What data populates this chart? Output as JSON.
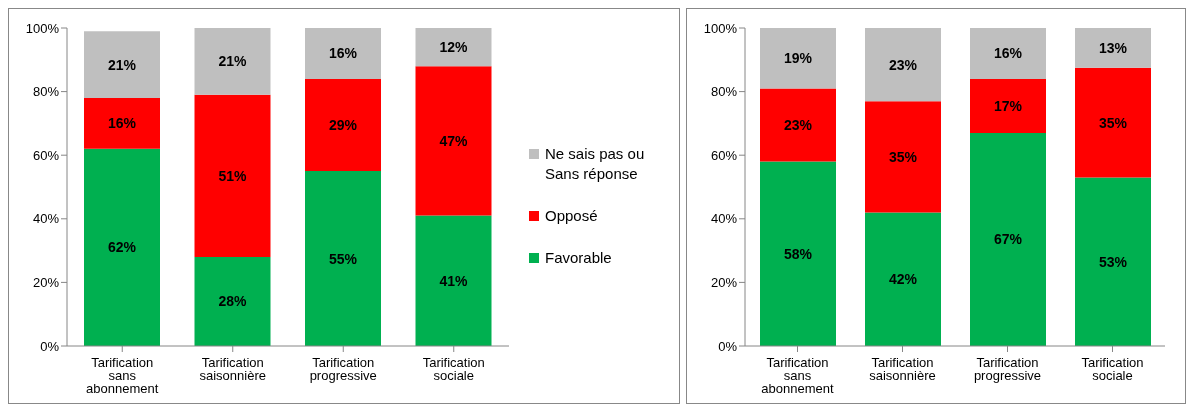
{
  "chart_data": [
    {
      "type": "bar",
      "stacked": true,
      "categories": [
        "Tarification sans abonnement",
        "Tarification saisonnière",
        "Tarification progressive",
        "Tarification sociale"
      ],
      "ylim": [
        0,
        100
      ],
      "yticks": [
        {
          "value": 0,
          "label": "0%"
        },
        {
          "value": 20,
          "label": "20%"
        },
        {
          "value": 40,
          "label": "40%"
        },
        {
          "value": 60,
          "label": "60%"
        },
        {
          "value": 80,
          "label": "80%"
        },
        {
          "value": 100,
          "label": "100%"
        }
      ],
      "legend": "right",
      "series": [
        {
          "name": "Favorable",
          "color": "#00b050",
          "values": [
            62,
            28,
            55,
            41
          ],
          "value_labels": [
            "62%",
            "28%",
            "55%",
            "41%"
          ]
        },
        {
          "name": "Opposé",
          "color": "#ff0000",
          "values": [
            16,
            51,
            29,
            47
          ],
          "value_labels": [
            "16%",
            "51%",
            "29%",
            "47%"
          ]
        },
        {
          "name": "Ne sais pas ou Sans réponse",
          "color": "#bfbfbf",
          "values": [
            21,
            21,
            16,
            12
          ],
          "value_labels": [
            "21%",
            "21%",
            "16%",
            "12%"
          ]
        }
      ]
    },
    {
      "type": "bar",
      "stacked": true,
      "categories": [
        "Tarification sans abonnement",
        "Tarification saisonnière",
        "Tarification progressive",
        "Tarification sociale"
      ],
      "ylim": [
        0,
        100
      ],
      "yticks": [
        {
          "value": 0,
          "label": "0%"
        },
        {
          "value": 20,
          "label": "20%"
        },
        {
          "value": 40,
          "label": "40%"
        },
        {
          "value": 60,
          "label": "60%"
        },
        {
          "value": 80,
          "label": "80%"
        },
        {
          "value": 100,
          "label": "100%"
        }
      ],
      "series": [
        {
          "color": "#00b050",
          "values": [
            58,
            42,
            67,
            53
          ],
          "value_labels": [
            "58%",
            "42%",
            "67%",
            "53%"
          ]
        },
        {
          "color": "#ff0000",
          "values": [
            23,
            35,
            17,
            34.5
          ],
          "value_labels": [
            "23%",
            "35%",
            "17%",
            "35%"
          ]
        },
        {
          "color": "#bfbfbf",
          "values": [
            19,
            23,
            16,
            12.5
          ],
          "value_labels": [
            "19%",
            "23%",
            "16%",
            "13%"
          ]
        }
      ]
    }
  ]
}
